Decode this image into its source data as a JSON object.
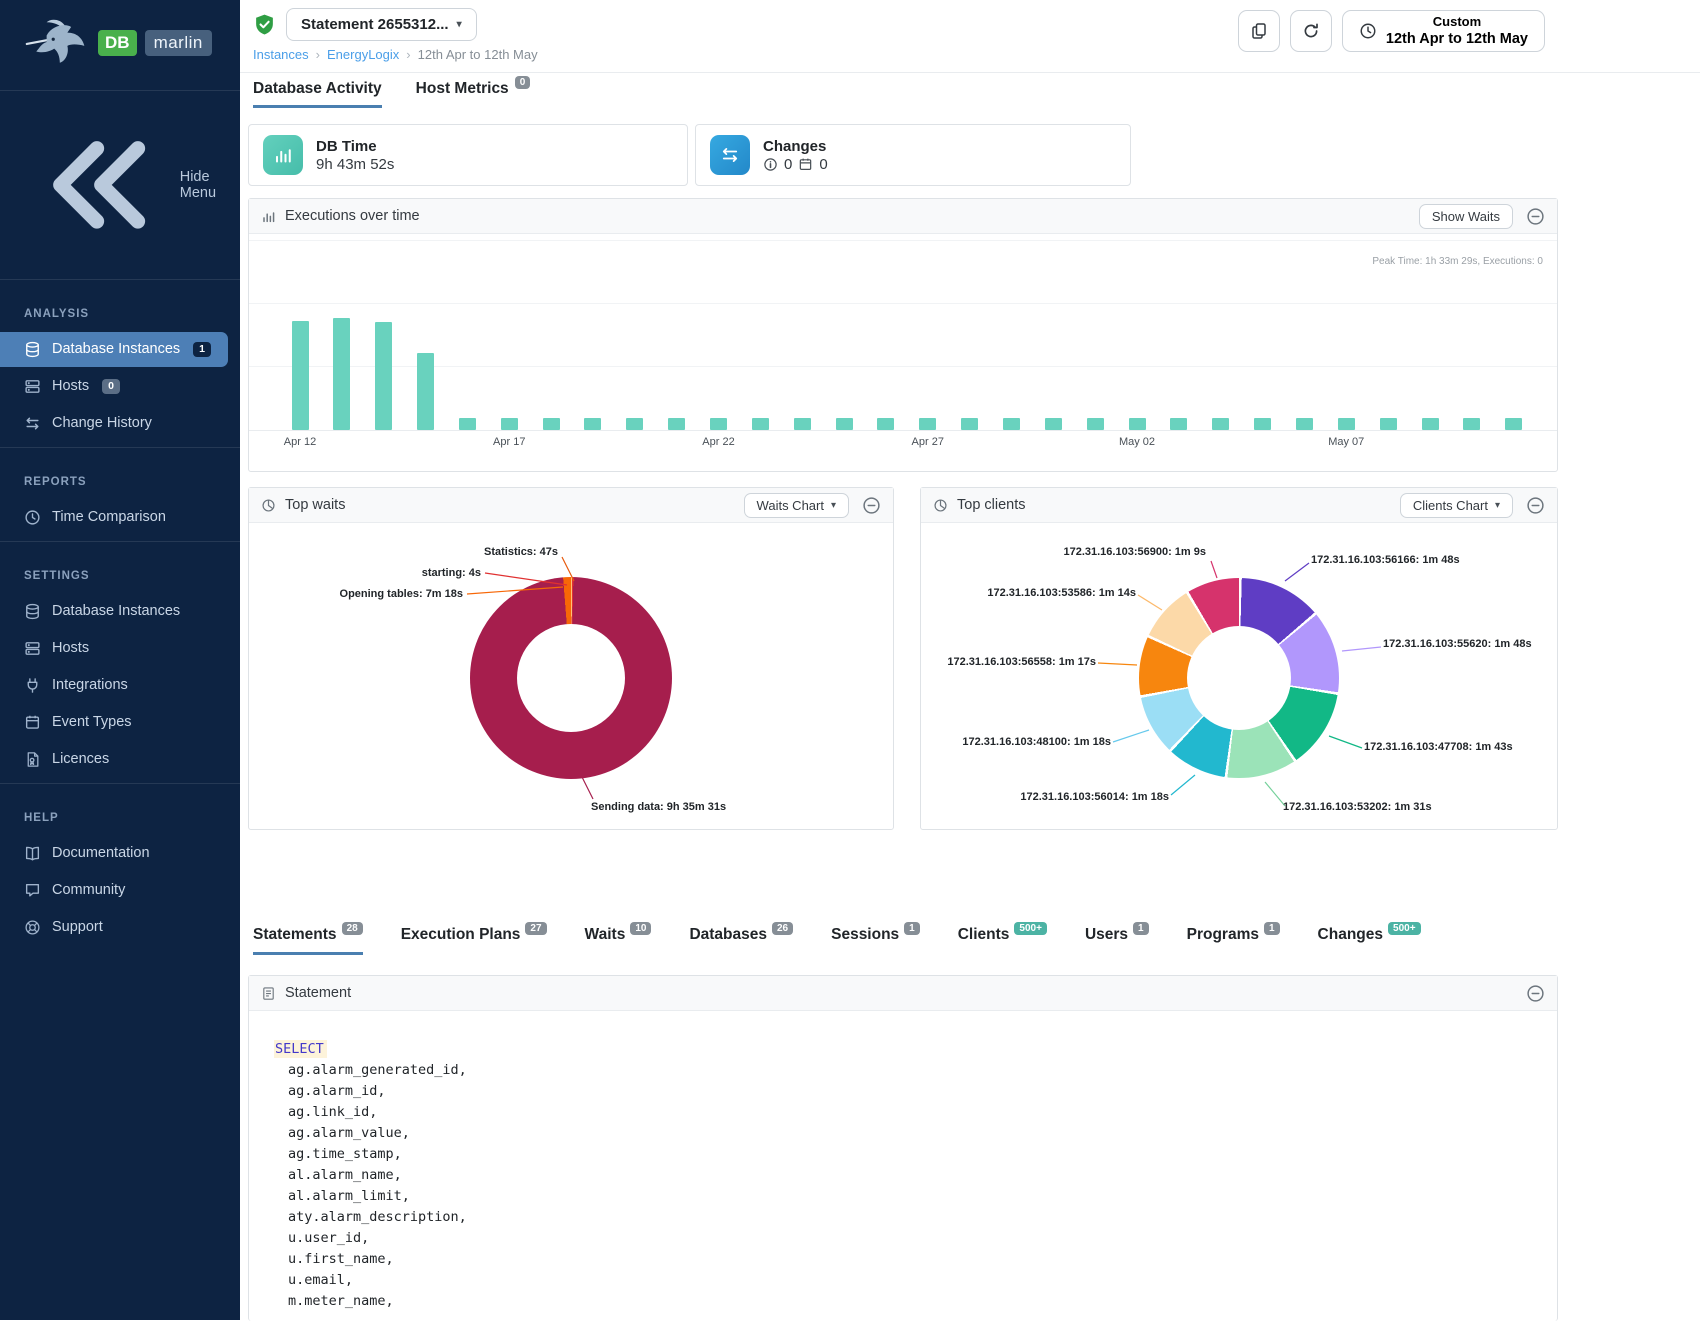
{
  "app": {
    "name": "DBmarlin",
    "logo_db": "DB",
    "logo_marlin": "marlin"
  },
  "colors": {
    "sidebar_bg": "#0d2342",
    "sidebar_active": "#4d7fb6",
    "accent_underline": "#4a7fb0",
    "link_blue": "#4a9ee8",
    "bar_teal": "#69d2be",
    "db_time_icon": "#57c9b6",
    "changes_icon": "#2d9fd8",
    "waits_main": "#a61e4d",
    "badge_gray": "#868e96",
    "badge_teal": "#4cb3a4"
  },
  "sidebar": {
    "hide_menu": "Hide Menu",
    "sections": [
      {
        "title": "ANALYSIS",
        "items": [
          {
            "label": "Database Instances",
            "icon": "database",
            "badge": "1",
            "badge_style": "dark",
            "active": true
          },
          {
            "label": "Hosts",
            "icon": "server",
            "badge": "0"
          },
          {
            "label": "Change History",
            "icon": "change-arrows"
          }
        ]
      },
      {
        "title": "REPORTS",
        "items": [
          {
            "label": "Time Comparison",
            "icon": "clock"
          }
        ]
      },
      {
        "title": "SETTINGS",
        "items": [
          {
            "label": "Database Instances",
            "icon": "database"
          },
          {
            "label": "Hosts",
            "icon": "server"
          },
          {
            "label": "Integrations",
            "icon": "plug"
          },
          {
            "label": "Event Types",
            "icon": "event"
          },
          {
            "label": "Licences",
            "icon": "licence"
          }
        ]
      },
      {
        "title": "HELP",
        "items": [
          {
            "label": "Documentation",
            "icon": "book"
          },
          {
            "label": "Community",
            "icon": "chat"
          },
          {
            "label": "Support",
            "icon": "lifebuoy"
          }
        ]
      }
    ]
  },
  "header": {
    "statement_selector": "Statement 2655312...",
    "breadcrumb": {
      "items": [
        "Instances",
        "EnergyLogix"
      ],
      "current": "12th Apr to 12th May"
    },
    "actions": {
      "time_range_label": "Custom",
      "time_range_value": "12th Apr to 12th May"
    },
    "tabs": [
      {
        "label": "Database Activity",
        "active": true
      },
      {
        "label": "Host Metrics",
        "badge": "0"
      }
    ]
  },
  "summary_cards": {
    "db_time": {
      "title": "DB Time",
      "value": "9h 43m 52s"
    },
    "changes": {
      "title": "Changes",
      "info_count": "0",
      "event_count": "0"
    }
  },
  "executions_panel": {
    "title": "Executions over time",
    "button": "Show Waits",
    "peak_note": "Peak Time: 1h 33m 29s, Executions: 0"
  },
  "waits_panel": {
    "title": "Top waits",
    "button": "Waits Chart"
  },
  "clients_panel": {
    "title": "Top clients",
    "button": "Clients Chart"
  },
  "bottom_tabs": [
    {
      "label": "Statements",
      "badge": "28",
      "active": true
    },
    {
      "label": "Execution Plans",
      "badge": "27"
    },
    {
      "label": "Waits",
      "badge": "10"
    },
    {
      "label": "Databases",
      "badge": "26"
    },
    {
      "label": "Sessions",
      "badge": "1"
    },
    {
      "label": "Clients",
      "badge": "500+",
      "badge_style": "teal"
    },
    {
      "label": "Users",
      "badge": "1"
    },
    {
      "label": "Programs",
      "badge": "1"
    },
    {
      "label": "Changes",
      "badge": "500+",
      "badge_style": "teal"
    }
  ],
  "statement_panel": {
    "title": "Statement",
    "sql_keyword": "SELECT",
    "sql_lines": [
      "ag.alarm_generated_id,",
      "ag.alarm_id,",
      "ag.link_id,",
      "ag.alarm_value,",
      "ag.time_stamp,",
      "al.alarm_name,",
      "al.alarm_limit,",
      "aty.alarm_description,",
      "u.user_id,",
      "u.first_name,",
      "u.email,",
      "m.meter_name,"
    ]
  },
  "chart_data": [
    {
      "type": "bar",
      "title": "Executions over time",
      "x": [
        "Apr 12",
        "Apr 13",
        "Apr 14",
        "Apr 15",
        "Apr 16",
        "Apr 17",
        "Apr 18",
        "Apr 19",
        "Apr 20",
        "Apr 21",
        "Apr 22",
        "Apr 23",
        "Apr 24",
        "Apr 25",
        "Apr 26",
        "Apr 27",
        "Apr 28",
        "Apr 29",
        "Apr 30",
        "May 01",
        "May 02",
        "May 03",
        "May 04",
        "May 05",
        "May 06",
        "May 07",
        "May 08",
        "May 09",
        "May 10",
        "May 11"
      ],
      "values": [
        97,
        100,
        96,
        69,
        11,
        11,
        11,
        11,
        11,
        11,
        11,
        11,
        11,
        11,
        11,
        11,
        11,
        11,
        11,
        11,
        11,
        11,
        11,
        11,
        11,
        11,
        11,
        11,
        11,
        11
      ],
      "values_note": "relative heights; y-axis unlabeled in source",
      "x_tick_labels": [
        "Apr 12",
        "Apr 17",
        "Apr 22",
        "Apr 27",
        "May 02",
        "May 07"
      ],
      "annotation": "Peak Time: 1h 33m 29s, Executions: 0",
      "bar_color": "#69d2be",
      "grid": true,
      "legend": false
    },
    {
      "type": "pie",
      "title": "Top waits",
      "slices": [
        {
          "label": "Sending data",
          "value": "9h 35m 31s",
          "seconds": 34531,
          "color": "#a61e4d"
        },
        {
          "label": "Opening tables",
          "value": "7m 18s",
          "seconds": 438,
          "color": "#f76707"
        },
        {
          "label": "Statistics",
          "value": "47s",
          "seconds": 47,
          "color": "#ffc078"
        },
        {
          "label": "starting",
          "value": "4s",
          "seconds": 4,
          "color": "#e03131"
        }
      ],
      "style": "donut",
      "legend": false
    },
    {
      "type": "pie",
      "title": "Top clients",
      "slices": [
        {
          "label": "172.31.16.103:56166",
          "value": "1m 48s",
          "seconds": 108,
          "color": "#5f3dc4"
        },
        {
          "label": "172.31.16.103:55620",
          "value": "1m 48s",
          "seconds": 108,
          "color": "#b197fc"
        },
        {
          "label": "172.31.16.103:47708",
          "value": "1m 43s",
          "seconds": 103,
          "color": "#12b886"
        },
        {
          "label": "172.31.16.103:53202",
          "value": "1m 31s",
          "seconds": 91,
          "color": "#9be3b8"
        },
        {
          "label": "172.31.16.103:56014",
          "value": "1m 18s",
          "seconds": 78,
          "color": "#22b8cf"
        },
        {
          "label": "172.31.16.103:48100",
          "value": "1m 18s",
          "seconds": 78,
          "color": "#9bdef5"
        },
        {
          "label": "172.31.16.103:56558",
          "value": "1m 17s",
          "seconds": 77,
          "color": "#f7860e"
        },
        {
          "label": "172.31.16.103:53586",
          "value": "1m 14s",
          "seconds": 74,
          "color": "#fcd9a8"
        },
        {
          "label": "172.31.16.103:56900",
          "value": "1m 9s",
          "seconds": 69,
          "color": "#d6336c"
        }
      ],
      "style": "donut",
      "legend": false
    }
  ]
}
